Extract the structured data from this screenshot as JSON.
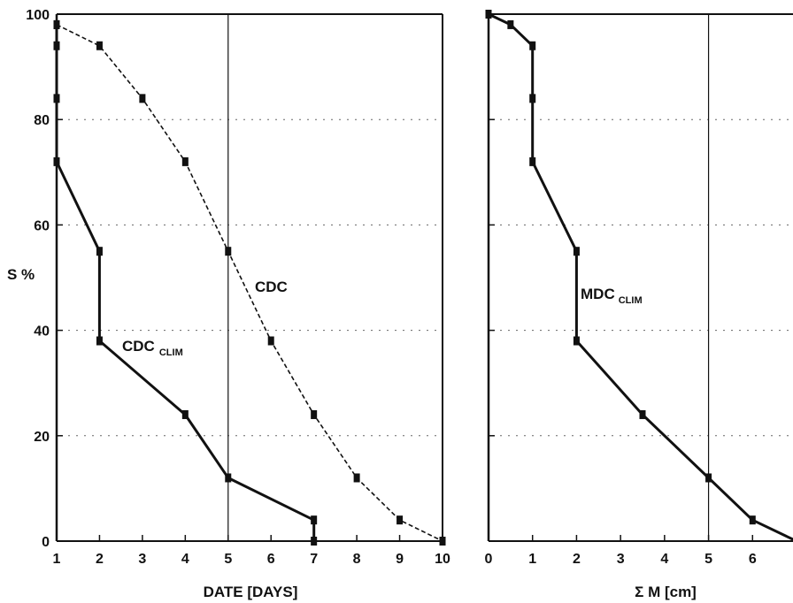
{
  "chart_data": [
    {
      "type": "line",
      "xlabel": "DATE [DAYS]",
      "ylabel": "S %",
      "xlim": [
        1,
        10
      ],
      "ylim": [
        0,
        100
      ],
      "xticks": [
        1,
        2,
        3,
        4,
        5,
        6,
        7,
        8,
        9,
        10
      ],
      "yticks": [
        0,
        20,
        40,
        60,
        80,
        100
      ],
      "grid": "dotted horizontal at 20, 40, 60, 80",
      "reference_lines_x": [
        5
      ],
      "series": [
        {
          "name": "CDC",
          "style": "dashed",
          "color": "#111111",
          "x": [
            1,
            2,
            3,
            4,
            5,
            6,
            7,
            8,
            9,
            10
          ],
          "y": [
            98,
            94,
            84,
            72,
            55,
            38,
            24,
            12,
            4,
            0
          ]
        },
        {
          "name": "CDC",
          "name_subscript": "CLIM",
          "style": "solid",
          "color": "#111111",
          "x": [
            1,
            1,
            1,
            1,
            2,
            2,
            4,
            5,
            7,
            7
          ],
          "y": [
            98,
            94,
            84,
            72,
            55,
            38,
            24,
            12,
            4,
            0
          ]
        }
      ]
    },
    {
      "type": "line",
      "xlabel": "Σ M [cm]",
      "ylabel": "",
      "xlim": [
        0,
        7
      ],
      "ylim": [
        0,
        100
      ],
      "xticks": [
        0,
        1,
        2,
        3,
        4,
        5,
        6,
        7
      ],
      "xtick_labels": [
        "0",
        "1",
        "2",
        "3",
        "4",
        "5",
        "6",
        "7"
      ],
      "yticks": [
        0,
        20,
        40,
        60,
        80,
        100
      ],
      "grid": "dotted horizontal at 20, 40, 60, 80",
      "reference_lines_x": [
        5
      ],
      "series": [
        {
          "name": "MDC",
          "name_subscript": "CLIM",
          "style": "solid",
          "color": "#111111",
          "x": [
            0,
            0.5,
            1,
            1,
            1,
            2,
            2,
            3.5,
            5,
            6,
            7
          ],
          "y": [
            100,
            98,
            94,
            84,
            72,
            55,
            38,
            24,
            12,
            4,
            0
          ]
        }
      ]
    }
  ]
}
